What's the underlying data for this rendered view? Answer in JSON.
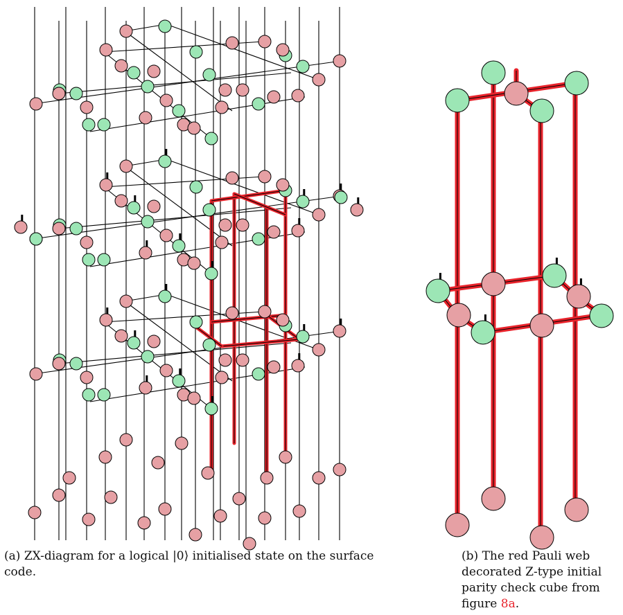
{
  "figure": {
    "left_caption": {
      "label": "(a)",
      "text": "ZX-diagram for a logical |0⟩ initialised state on the surface code."
    },
    "right_caption": {
      "label": "(b)",
      "text_before_ref": "The red Pauli web decorated Z-type initial parity check cube from figure",
      "ref": "8a",
      "text_after_ref": "."
    }
  },
  "colors": {
    "z_spider_fill": "#9ce6b5",
    "x_spider_fill": "#e6a0a4",
    "pauli_web": "#e8232b",
    "wire": "#000000"
  }
}
